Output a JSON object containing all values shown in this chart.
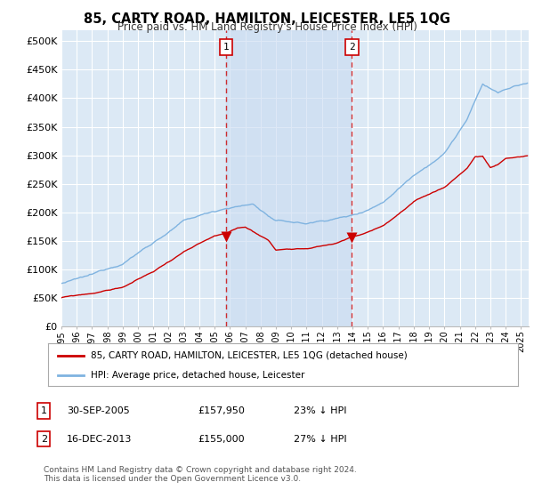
{
  "title": "85, CARTY ROAD, HAMILTON, LEICESTER, LE5 1QG",
  "subtitle": "Price paid vs. HM Land Registry's House Price Index (HPI)",
  "background_color": "#ffffff",
  "plot_bg_color": "#dce9f5",
  "shade_color": "#c8daf0",
  "grid_color": "#ffffff",
  "hpi_color": "#7fb3e0",
  "price_color": "#cc0000",
  "dashed_color": "#cc0000",
  "ylim": [
    0,
    520000
  ],
  "yticks": [
    0,
    50000,
    100000,
    150000,
    200000,
    250000,
    300000,
    350000,
    400000,
    450000,
    500000
  ],
  "ytick_labels": [
    "£0",
    "£50K",
    "£100K",
    "£150K",
    "£200K",
    "£250K",
    "£300K",
    "£350K",
    "£400K",
    "£450K",
    "£500K"
  ],
  "sale1_year": 2005.75,
  "sale1_price": 157950,
  "sale1_label": "1",
  "sale2_year": 2013.96,
  "sale2_price": 155000,
  "sale2_label": "2",
  "legend_line1": "85, CARTY ROAD, HAMILTON, LEICESTER, LE5 1QG (detached house)",
  "legend_line2": "HPI: Average price, detached house, Leicester",
  "table_row1": [
    "1",
    "30-SEP-2005",
    "£157,950",
    "23% ↓ HPI"
  ],
  "table_row2": [
    "2",
    "16-DEC-2013",
    "£155,000",
    "27% ↓ HPI"
  ],
  "footnote": "Contains HM Land Registry data © Crown copyright and database right 2024.\nThis data is licensed under the Open Government Licence v3.0.",
  "xmin": 1995,
  "xmax": 2025.5
}
